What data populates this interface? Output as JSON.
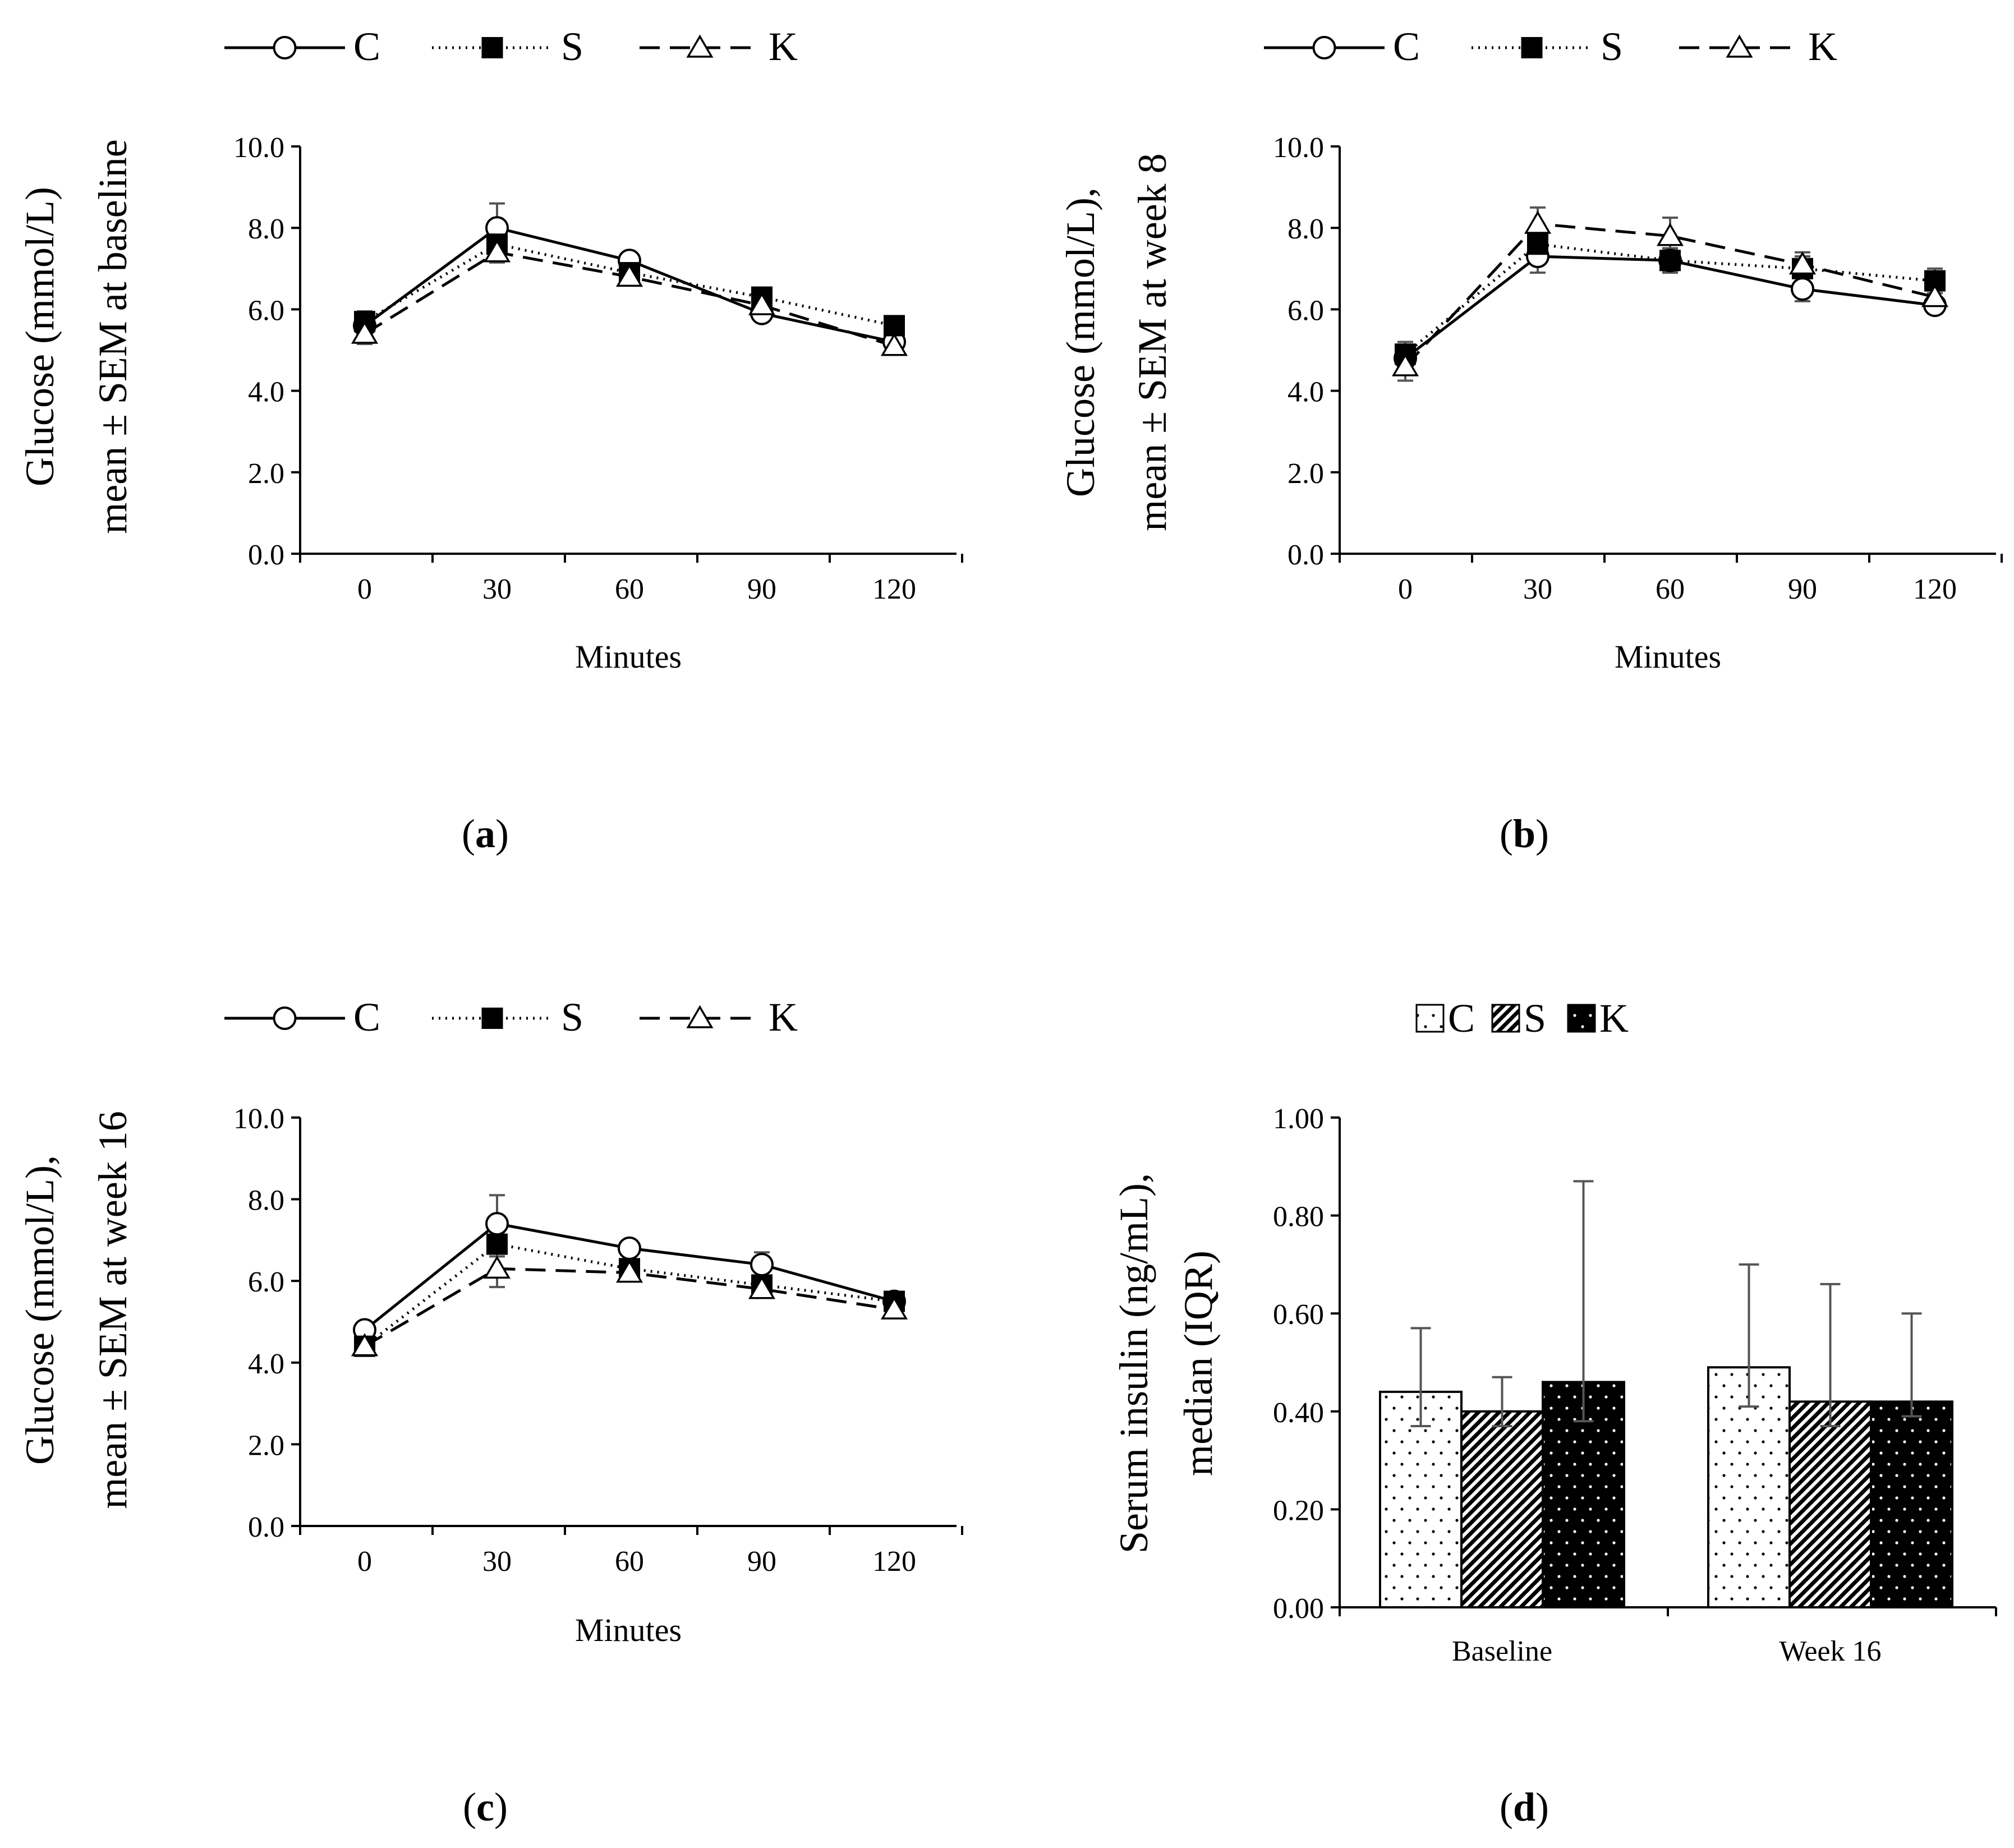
{
  "figure": {
    "panel_labels": [
      "a",
      "b",
      "c",
      "d"
    ]
  },
  "chart_data": [
    {
      "id": "a",
      "type": "line",
      "panel_label": "a",
      "xlabel": "Minutes",
      "ylabel_lines": [
        "Glucose (mmol/L)",
        "mean ± SEM at baseline"
      ],
      "ylim": [
        0,
        10
      ],
      "yticks": [
        0,
        2,
        4,
        6,
        8,
        10
      ],
      "ytick_labels": [
        "0.0",
        "2.0",
        "4.0",
        "6.0",
        "8.0",
        "10.0"
      ],
      "categories": [
        "0",
        "30",
        "60",
        "90",
        "120"
      ],
      "series": [
        {
          "name": "C",
          "marker": "circle-open",
          "line": "solid",
          "values": [
            5.6,
            8.0,
            7.2,
            5.9,
            5.2
          ],
          "sem": [
            0.2,
            0.6,
            0.15,
            0.15,
            0.15
          ]
        },
        {
          "name": "S",
          "marker": "square-filled",
          "line": "dotted",
          "values": [
            5.7,
            7.6,
            6.9,
            6.3,
            5.6
          ],
          "sem": [
            0.25,
            0.25,
            0.2,
            0.15,
            0.15
          ]
        },
        {
          "name": "K",
          "marker": "triangle-open",
          "line": "dashed",
          "values": [
            5.4,
            7.4,
            6.8,
            6.1,
            5.1
          ],
          "sem": [
            0.25,
            0.25,
            0.2,
            0.2,
            0.2
          ]
        }
      ]
    },
    {
      "id": "b",
      "type": "line",
      "panel_label": "b",
      "xlabel": "Minutes",
      "ylabel_lines": [
        "Glucose (mmol/L),",
        "mean ± SEM at week 8"
      ],
      "ylim": [
        0,
        10
      ],
      "yticks": [
        0,
        2,
        4,
        6,
        8,
        10
      ],
      "ytick_labels": [
        "0.0",
        "2.0",
        "4.0",
        "6.0",
        "8.0",
        "10.0"
      ],
      "categories": [
        "0",
        "30",
        "60",
        "90",
        "120"
      ],
      "series": [
        {
          "name": "C",
          "marker": "circle-open",
          "line": "solid",
          "values": [
            4.8,
            7.3,
            7.2,
            6.5,
            6.1
          ],
          "sem": [
            0.3,
            0.4,
            0.25,
            0.3,
            0.2
          ]
        },
        {
          "name": "S",
          "marker": "square-filled",
          "line": "dotted",
          "values": [
            4.9,
            7.6,
            7.2,
            7.0,
            6.7
          ],
          "sem": [
            0.3,
            0.3,
            0.3,
            0.3,
            0.3
          ]
        },
        {
          "name": "K",
          "marker": "triangle-open",
          "line": "dashed",
          "values": [
            4.6,
            8.1,
            7.8,
            7.1,
            6.3
          ],
          "sem": [
            0.35,
            0.4,
            0.45,
            0.3,
            0.3
          ]
        }
      ]
    },
    {
      "id": "c",
      "type": "line",
      "panel_label": "c",
      "xlabel": "Minutes",
      "ylabel_lines": [
        "Glucose (mmol/L),",
        "mean ± SEM at week 16"
      ],
      "ylim": [
        0,
        10
      ],
      "yticks": [
        0,
        2,
        4,
        6,
        8,
        10
      ],
      "ytick_labels": [
        "0.0",
        "2.0",
        "4.0",
        "6.0",
        "8.0",
        "10.0"
      ],
      "categories": [
        "0",
        "30",
        "60",
        "90",
        "120"
      ],
      "series": [
        {
          "name": "C",
          "marker": "circle-open",
          "line": "solid",
          "values": [
            4.8,
            7.4,
            6.8,
            6.4,
            5.5
          ],
          "sem": [
            0.15,
            0.7,
            0.15,
            0.3,
            0.15
          ]
        },
        {
          "name": "S",
          "marker": "square-filled",
          "line": "dotted",
          "values": [
            4.4,
            6.9,
            6.3,
            5.9,
            5.5
          ],
          "sem": [
            0.15,
            0.3,
            0.2,
            0.2,
            0.2
          ]
        },
        {
          "name": "K",
          "marker": "triangle-open",
          "line": "dashed",
          "values": [
            4.4,
            6.3,
            6.2,
            5.8,
            5.3
          ],
          "sem": [
            0.15,
            0.45,
            0.2,
            0.2,
            0.2
          ]
        }
      ]
    },
    {
      "id": "d",
      "type": "bar",
      "panel_label": "d",
      "ylabel_lines": [
        "Serum insulin (ng/mL),",
        "median (IQR)"
      ],
      "ylim": [
        0,
        1
      ],
      "yticks": [
        0,
        0.2,
        0.4,
        0.6,
        0.8,
        1.0
      ],
      "ytick_labels": [
        "0.00",
        "0.20",
        "0.40",
        "0.60",
        "0.80",
        "1.00"
      ],
      "categories": [
        "Baseline",
        "Week 16"
      ],
      "series": [
        {
          "name": "C",
          "fill": "dots-on-white",
          "values": [
            0.44,
            0.49
          ],
          "iqr_low": [
            0.37,
            0.41
          ],
          "iqr_high": [
            0.57,
            0.7
          ]
        },
        {
          "name": "S",
          "fill": "diagonal-hatch",
          "values": [
            0.4,
            0.42
          ],
          "iqr_low": [
            0.37,
            0.37
          ],
          "iqr_high": [
            0.47,
            0.66
          ]
        },
        {
          "name": "K",
          "fill": "dots-on-black",
          "values": [
            0.46,
            0.42
          ],
          "iqr_low": [
            0.38,
            0.39
          ],
          "iqr_high": [
            0.87,
            0.6
          ]
        }
      ]
    }
  ]
}
